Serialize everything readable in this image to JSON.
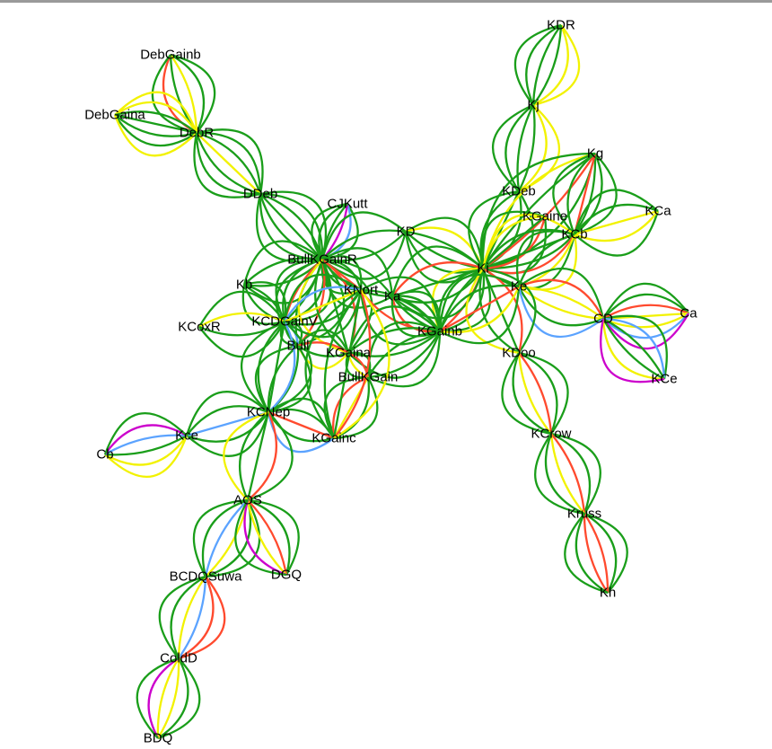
{
  "palette": {
    "green": "#1a9e1a",
    "red": "#ff4a2e",
    "yellow": "#f2f200",
    "blue": "#5ba3ff",
    "magenta": "#cc00cc"
  },
  "graph": {
    "nodes": [
      {
        "id": "KDR",
        "label": "KDR"
      },
      {
        "id": "DebGainb",
        "label": "DebGainb"
      },
      {
        "id": "DebGaina",
        "label": "DebGaina"
      },
      {
        "id": "DebR",
        "label": "DebR"
      },
      {
        "id": "Kj",
        "label": "Kj"
      },
      {
        "id": "Kg",
        "label": "Kg"
      },
      {
        "id": "DDeb",
        "label": "DDeb"
      },
      {
        "id": "KDeb",
        "label": "KDeb"
      },
      {
        "id": "CJKutt",
        "label": "CJKutt"
      },
      {
        "id": "KCa",
        "label": "KCa"
      },
      {
        "id": "KGaine",
        "label": "KGaine"
      },
      {
        "id": "KD",
        "label": "KD"
      },
      {
        "id": "KCb",
        "label": "KCb"
      },
      {
        "id": "BullKGainR",
        "label": "BullKGainR"
      },
      {
        "id": "Ki",
        "label": "Ki"
      },
      {
        "id": "Kb",
        "label": "Kb"
      },
      {
        "id": "KNort",
        "label": "KNort"
      },
      {
        "id": "Ka",
        "label": "Ka"
      },
      {
        "id": "Ke",
        "label": "Ke"
      },
      {
        "id": "Ca",
        "label": "Ca"
      },
      {
        "id": "CD",
        "label": "CD"
      },
      {
        "id": "KCoxR",
        "label": "KCoxR"
      },
      {
        "id": "KCDGainV",
        "label": "KCDGainV"
      },
      {
        "id": "KGainb",
        "label": "KGainb"
      },
      {
        "id": "Bull",
        "label": "Bull"
      },
      {
        "id": "KGaina",
        "label": "KGaina"
      },
      {
        "id": "KDoo",
        "label": "KDoo"
      },
      {
        "id": "BullKGain",
        "label": "BullKGain"
      },
      {
        "id": "KCe",
        "label": "KCe"
      },
      {
        "id": "KCNep",
        "label": "KCNep"
      },
      {
        "id": "Kce",
        "label": "Kce"
      },
      {
        "id": "KGainc",
        "label": "KGainc"
      },
      {
        "id": "KCrow",
        "label": "KCrow"
      },
      {
        "id": "Cb",
        "label": "Cb"
      },
      {
        "id": "AOS",
        "label": "AOS"
      },
      {
        "id": "Kruss",
        "label": "Kruss"
      },
      {
        "id": "BCDQSuwa",
        "label": "BCDQSuwa"
      },
      {
        "id": "DGQ",
        "label": "DGQ"
      },
      {
        "id": "Kh",
        "label": "Kh"
      },
      {
        "id": "ColdD",
        "label": "ColdD"
      },
      {
        "id": "BDQ",
        "label": "BDQ"
      }
    ],
    "edges": [
      {
        "source": "KDR",
        "target": "Kj",
        "colors": [
          "yellow",
          "yellow",
          "green",
          "green",
          "green",
          "green"
        ]
      },
      {
        "source": "Kj",
        "target": "KDeb",
        "colors": [
          "yellow",
          "yellow",
          "green",
          "green",
          "green",
          "green"
        ]
      },
      {
        "source": "DebGainb",
        "target": "DebR",
        "colors": [
          "green",
          "green",
          "yellow",
          "green",
          "red",
          "green"
        ]
      },
      {
        "source": "DebGaina",
        "target": "DebR",
        "colors": [
          "yellow",
          "yellow",
          "green",
          "green",
          "green",
          "green",
          "yellow"
        ]
      },
      {
        "source": "DebR",
        "target": "DDeb",
        "colors": [
          "green",
          "green",
          "green",
          "yellow",
          "green",
          "green",
          "green"
        ]
      },
      {
        "source": "DDeb",
        "target": "BullKGainR",
        "colors": [
          "green",
          "green",
          "green",
          "green",
          "green",
          "green",
          "green"
        ]
      },
      {
        "source": "CJKutt",
        "target": "BullKGainR",
        "colors": [
          "green",
          "blue",
          "magenta",
          "green",
          "green",
          "green"
        ]
      },
      {
        "source": "KD",
        "target": "BullKGainR",
        "colors": [
          "green",
          "green",
          "green",
          "green"
        ]
      },
      {
        "source": "KD",
        "target": "Ki",
        "colors": [
          "green",
          "yellow",
          "green",
          "green",
          "green",
          "green"
        ]
      },
      {
        "source": "KDeb",
        "target": "Ki",
        "colors": [
          "green",
          "green",
          "green",
          "green",
          "green"
        ]
      },
      {
        "source": "Kg",
        "target": "Ki",
        "colors": [
          "green",
          "green",
          "red",
          "green",
          "yellow",
          "green"
        ]
      },
      {
        "source": "Kg",
        "target": "KCb",
        "colors": [
          "green",
          "green",
          "red",
          "green",
          "green"
        ]
      },
      {
        "source": "KGaine",
        "target": "Ki",
        "colors": [
          "green",
          "red",
          "green",
          "yellow",
          "green"
        ]
      },
      {
        "source": "KCb",
        "target": "Ki",
        "colors": [
          "green",
          "red",
          "green",
          "green",
          "yellow"
        ]
      },
      {
        "source": "KCa",
        "target": "KCb",
        "colors": [
          "green",
          "yellow",
          "yellow",
          "green",
          "green"
        ]
      },
      {
        "source": "KCb",
        "target": "Ke",
        "colors": [
          "yellow",
          "yellow",
          "green",
          "green"
        ]
      },
      {
        "source": "Ke",
        "target": "CD",
        "colors": [
          "green",
          "red",
          "yellow",
          "yellow",
          "green",
          "blue"
        ]
      },
      {
        "source": "CD",
        "target": "Ca",
        "colors": [
          "green",
          "green",
          "red",
          "yellow",
          "yellow",
          "blue",
          "magenta"
        ]
      },
      {
        "source": "CD",
        "target": "KCe",
        "colors": [
          "green",
          "blue",
          "green",
          "green",
          "yellow",
          "magenta"
        ]
      },
      {
        "source": "Ki",
        "target": "KGainb",
        "colors": [
          "green",
          "green",
          "red",
          "green",
          "green",
          "yellow"
        ]
      },
      {
        "source": "Ki",
        "target": "Ka",
        "colors": [
          "green",
          "green",
          "green",
          "red",
          "green"
        ]
      },
      {
        "source": "Ki",
        "target": "KDoo",
        "colors": [
          "green",
          "red",
          "green",
          "green",
          "yellow"
        ]
      },
      {
        "source": "Ke",
        "target": "KGainb",
        "colors": [
          "green",
          "yellow",
          "red",
          "green",
          "green"
        ]
      },
      {
        "source": "KDoo",
        "target": "KCrow",
        "colors": [
          "green",
          "green",
          "red",
          "yellow",
          "green",
          "green"
        ]
      },
      {
        "source": "KCrow",
        "target": "Kruss",
        "colors": [
          "green",
          "green",
          "red",
          "yellow",
          "green",
          "green"
        ]
      },
      {
        "source": "Kruss",
        "target": "Kh",
        "colors": [
          "green",
          "green",
          "red",
          "red",
          "green",
          "green"
        ]
      },
      {
        "source": "BullKGainR",
        "target": "KNort",
        "colors": [
          "green",
          "green",
          "red",
          "green",
          "green"
        ]
      },
      {
        "source": "BullKGainR",
        "target": "Ka",
        "colors": [
          "green",
          "green",
          "green",
          "green"
        ]
      },
      {
        "source": "BullKGainR",
        "target": "Kb",
        "colors": [
          "green",
          "green",
          "green",
          "green"
        ]
      },
      {
        "source": "BullKGainR",
        "target": "KCDGainV",
        "colors": [
          "green",
          "green",
          "green",
          "red",
          "green",
          "green"
        ]
      },
      {
        "source": "BullKGainR",
        "target": "Bull",
        "colors": [
          "green",
          "red",
          "green",
          "green"
        ]
      },
      {
        "source": "BullKGainR",
        "target": "KGaina",
        "colors": [
          "green",
          "red",
          "green",
          "green",
          "yellow"
        ]
      },
      {
        "source": "Kb",
        "target": "KCDGainV",
        "colors": [
          "green",
          "green",
          "green",
          "green"
        ]
      },
      {
        "source": "KCoxR",
        "target": "KCDGainV",
        "colors": [
          "green",
          "yellow",
          "green",
          "green"
        ]
      },
      {
        "source": "KCDGainV",
        "target": "Bull",
        "colors": [
          "green",
          "blue",
          "green",
          "green"
        ]
      },
      {
        "source": "KCDGainV",
        "target": "KNort",
        "colors": [
          "green",
          "blue",
          "yellow",
          "green",
          "green"
        ]
      },
      {
        "source": "KNort",
        "target": "KGainb",
        "colors": [
          "green",
          "green",
          "red",
          "green"
        ]
      },
      {
        "source": "Ka",
        "target": "KGainb",
        "colors": [
          "green",
          "green",
          "green",
          "green",
          "red",
          "green"
        ]
      },
      {
        "source": "KGaina",
        "target": "KGainb",
        "colors": [
          "green",
          "green",
          "green",
          "green"
        ]
      },
      {
        "source": "BullKGain",
        "target": "KGainb",
        "colors": [
          "green",
          "green",
          "green",
          "green"
        ]
      },
      {
        "source": "Bull",
        "target": "KGaina",
        "colors": [
          "green",
          "red",
          "green",
          "yellow"
        ]
      },
      {
        "source": "Bull",
        "target": "KCNep",
        "colors": [
          "green",
          "green",
          "green",
          "green"
        ]
      },
      {
        "source": "KGaina",
        "target": "BullKGain",
        "colors": [
          "green",
          "red",
          "yellow",
          "green"
        ]
      },
      {
        "source": "KCDGainV",
        "target": "KCNep",
        "colors": [
          "green",
          "blue",
          "green",
          "green",
          "green"
        ]
      },
      {
        "source": "KCNep",
        "target": "KGainc",
        "colors": [
          "green",
          "green",
          "red",
          "green",
          "blue"
        ]
      },
      {
        "source": "KGainc",
        "target": "BullKGain",
        "colors": [
          "green",
          "red",
          "yellow",
          "green",
          "green"
        ]
      },
      {
        "source": "KGainc",
        "target": "KNort",
        "colors": [
          "green",
          "green",
          "green",
          "red",
          "yellow"
        ]
      },
      {
        "source": "KCNep",
        "target": "Kce",
        "colors": [
          "green",
          "green",
          "blue",
          "green",
          "green"
        ]
      },
      {
        "source": "Kce",
        "target": "Cb",
        "colors": [
          "yellow",
          "yellow",
          "green",
          "blue",
          "magenta",
          "green"
        ]
      },
      {
        "source": "KCNep",
        "target": "AOS",
        "colors": [
          "green",
          "red",
          "green",
          "green",
          "yellow"
        ]
      },
      {
        "source": "AOS",
        "target": "BCDQSuwa",
        "colors": [
          "green",
          "green",
          "yellow",
          "blue",
          "green",
          "green"
        ]
      },
      {
        "source": "AOS",
        "target": "DGQ",
        "colors": [
          "green",
          "green",
          "red",
          "yellow",
          "magenta",
          "green"
        ]
      },
      {
        "source": "BCDQSuwa",
        "target": "ColdD",
        "colors": [
          "red",
          "red",
          "blue",
          "yellow",
          "green",
          "green"
        ]
      },
      {
        "source": "ColdD",
        "target": "BDQ",
        "colors": [
          "green",
          "green",
          "yellow",
          "yellow",
          "magenta",
          "green"
        ]
      }
    ]
  }
}
